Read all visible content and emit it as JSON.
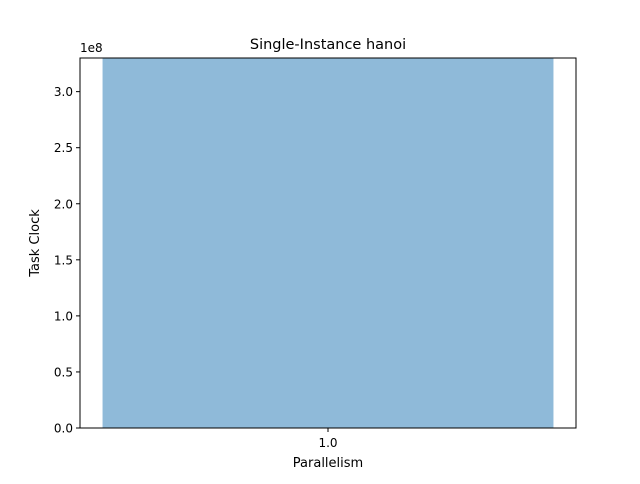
{
  "chart_data": {
    "type": "bar",
    "title": "Single-Instance hanoi",
    "xlabel": "Parallelism",
    "ylabel": "Task Clock",
    "y_offset_label": "1e8",
    "y_scale": 100000000,
    "categories": [
      "1.0"
    ],
    "series": [
      {
        "values": [
          330000000
        ]
      }
    ],
    "ylim": [
      0,
      330000000
    ],
    "yticks": [
      {
        "value": 0,
        "label": "0.0"
      },
      {
        "value": 50000000,
        "label": "0.5"
      },
      {
        "value": 100000000,
        "label": "1.0"
      },
      {
        "value": 150000000,
        "label": "1.5"
      },
      {
        "value": 200000000,
        "label": "2.0"
      },
      {
        "value": 250000000,
        "label": "2.5"
      },
      {
        "value": 300000000,
        "label": "3.0"
      }
    ],
    "bar_color": "#8fbad9",
    "grid": false,
    "legend": "none"
  }
}
